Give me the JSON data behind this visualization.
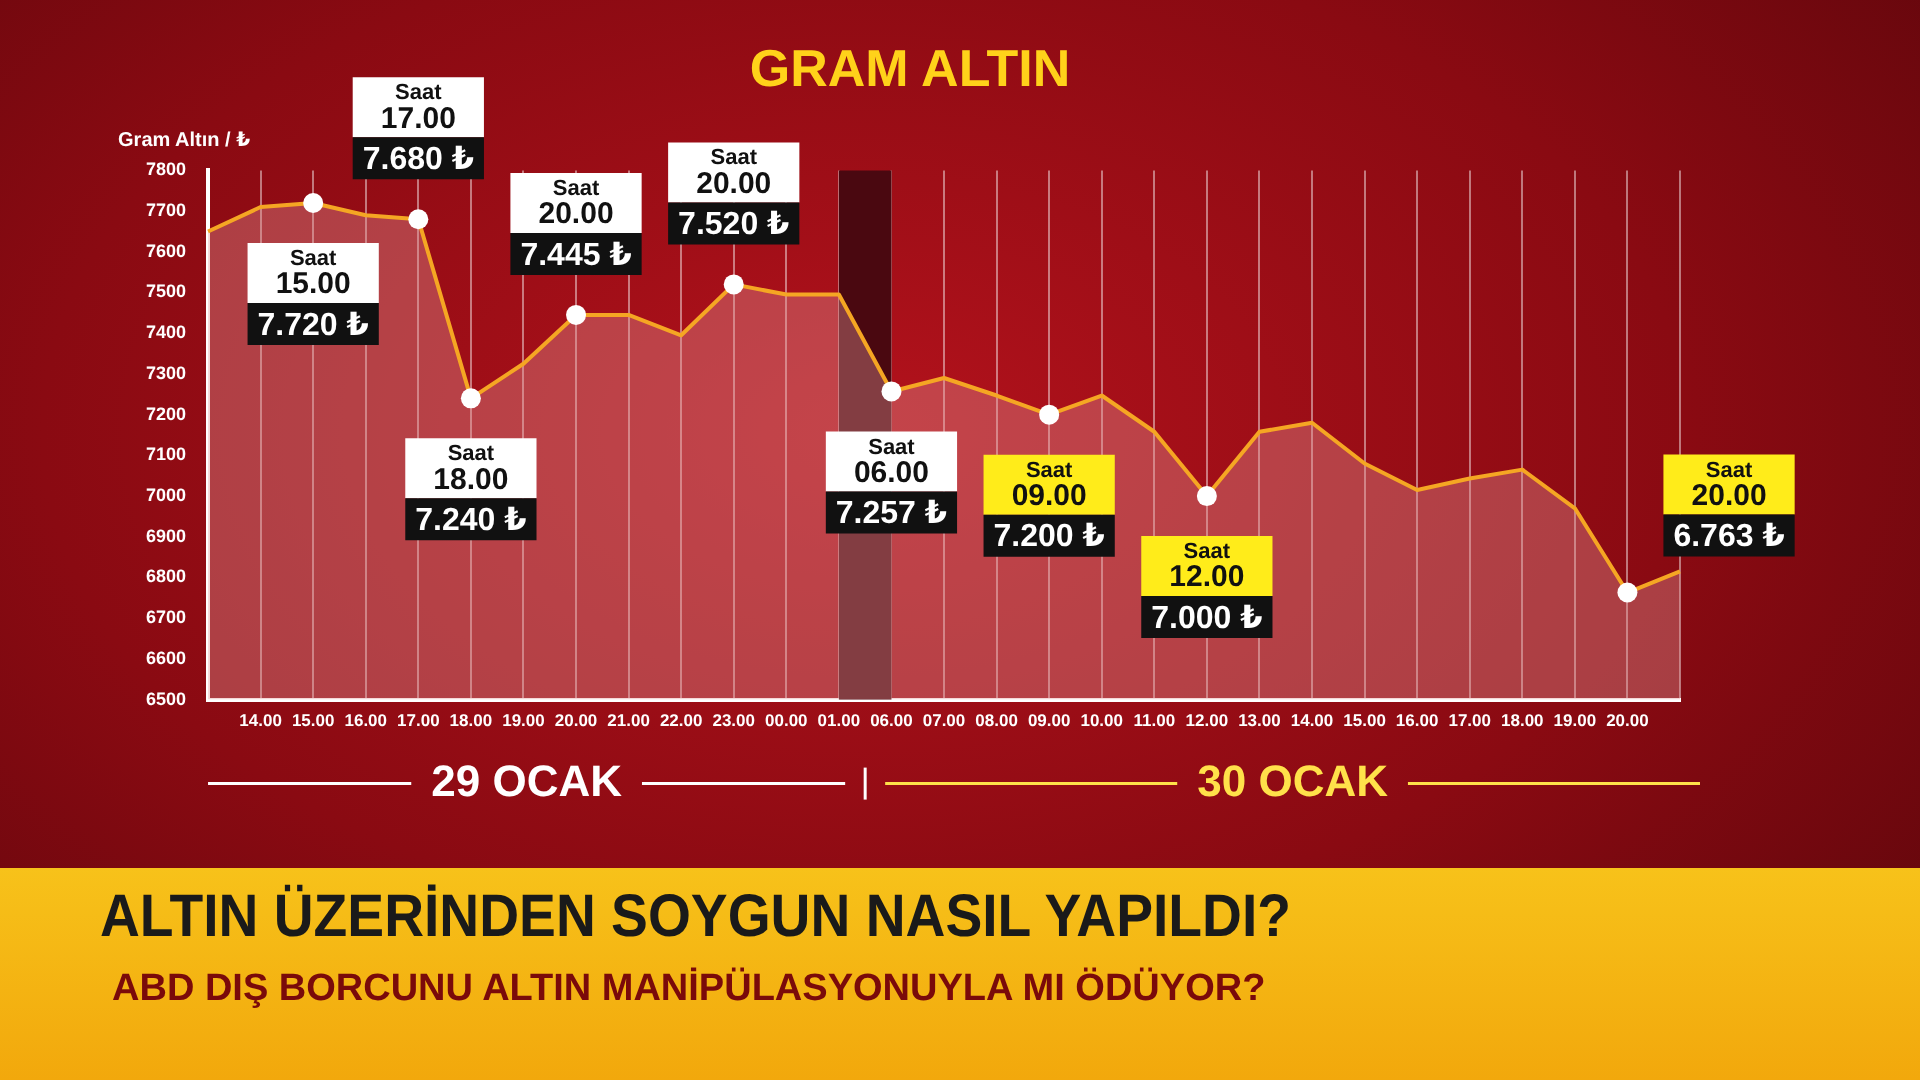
{
  "chart_data": {
    "type": "area",
    "title": "GRAM ALTIN",
    "ylabel": "Gram Altın / ₺",
    "categories": [
      null,
      "14.00",
      "15.00",
      "16.00",
      "17.00",
      "18.00",
      "19.00",
      "20.00",
      "21.00",
      "22.00",
      "23.00",
      "00.00",
      "01.00",
      "06.00",
      "07.00",
      "08.00",
      "09.00",
      "10.00",
      "11.00",
      "12.00",
      "13.00",
      "14.00",
      "15.00",
      "16.00",
      "17.00",
      "18.00",
      "19.00",
      "20.00",
      null
    ],
    "series": [
      {
        "color": "#f5a623",
        "values": [
          7650,
          7710,
          7720,
          7690,
          7680,
          7240,
          7325,
          7445,
          7445,
          7395,
          7520,
          7495,
          7495,
          7257,
          7290,
          7247,
          7200,
          7247,
          7158,
          7000,
          7158,
          7180,
          7080,
          7015,
          7043,
          7065,
          6970,
          6763,
          6815
        ],
        "value_labels": [
          null,
          null,
          "Saat\n15.00\n7.720 ₺",
          null,
          "Saat\n17.00\n7.680 ₺",
          "Saat\n18.00\n7.240 ₺",
          null,
          "Saat\n20.00\n7.445 ₺",
          null,
          null,
          "Saat\n20.00\n7.520 ₺",
          null,
          null,
          "Saat\n06.00\n7.257 ₺",
          null,
          null,
          "Saat\n09.00\n7.200 ₺",
          null,
          null,
          "Saat\n12.00\n7.000 ₺",
          null,
          null,
          null,
          null,
          null,
          null,
          null,
          "Saat\n20.00\n6.763 ₺",
          null
        ]
      }
    ],
    "ylim": [
      6500,
      7800
    ],
    "yticks": [
      6500,
      6600,
      6700,
      6800,
      6900,
      7000,
      7100,
      7200,
      7300,
      7400,
      7500,
      7600,
      7700,
      7800
    ],
    "grid": "x",
    "bands": [
      {
        "axis": "x",
        "from": "01.00",
        "to": "06.00",
        "color": "#4a0810"
      }
    ],
    "annotations": [
      "29 OCAK",
      "30 OCAK",
      "ALTIN ÜZERİNDEN SOYGUN NASIL YAPILDI?",
      "ABD DIŞ BORCUNU ALTIN MANİPÜLASYONUYLA MI ÖDÜYOR?"
    ]
  }
}
